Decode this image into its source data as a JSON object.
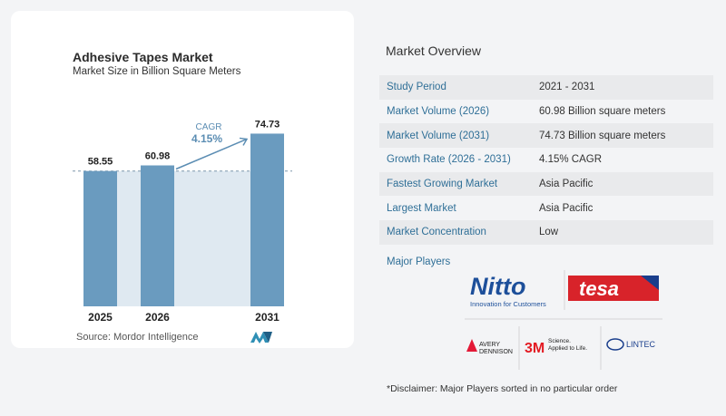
{
  "chart": {
    "title": "Adhesive Tapes Market",
    "subtitle": "Market Size in Billion Square Meters",
    "cagr_label": "CAGR",
    "cagr_value": "4.15%",
    "source": "Source:  Mordor Intelligence"
  },
  "chart_data": {
    "type": "bar",
    "title": "Adhesive Tapes Market",
    "subtitle": "Market Size in Billion Square Meters",
    "categories": [
      "2025",
      "2026",
      "2031"
    ],
    "values": [
      58.55,
      60.98,
      74.73
    ],
    "value_labels": [
      "58.55",
      "60.98",
      "74.73"
    ],
    "ylim": [
      0,
      80
    ],
    "grid": false,
    "annotations": [
      {
        "text": "CAGR 4.15%",
        "from": "2026",
        "to": "2031"
      }
    ],
    "colors": {
      "bar": "#6a9bbf",
      "shade": "#dfe9f1",
      "accent": "#5b8db3"
    }
  },
  "overview": {
    "title": "Market Overview",
    "rows": [
      {
        "label": "Study Period",
        "value": "2021 - 2031"
      },
      {
        "label": "Market Volume (2026)",
        "value": "60.98 Billion square meters"
      },
      {
        "label": "Market Volume (2031)",
        "value": "74.73 Billion square meters"
      },
      {
        "label": "Growth Rate (2026 - 2031)",
        "value": "4.15% CAGR"
      },
      {
        "label": "Fastest Growing Market",
        "value": "Asia Pacific"
      },
      {
        "label": "Largest Market",
        "value": "Asia Pacific"
      },
      {
        "label": "Market Concentration",
        "value": "Low"
      }
    ],
    "players_label": "Major Players",
    "players": {
      "nitto": "Nitto",
      "nitto_tagline": "Innovation for Customers",
      "tesa": "tesa",
      "avery_line1": "AVERY",
      "avery_line2": "DENNISON",
      "threem": "3M",
      "threem_tag1": "Science.",
      "threem_tag2": "Applied to Life.",
      "lintec": "LINTEC"
    },
    "disclaimer": "*Disclaimer: Major Players sorted in no particular order"
  }
}
